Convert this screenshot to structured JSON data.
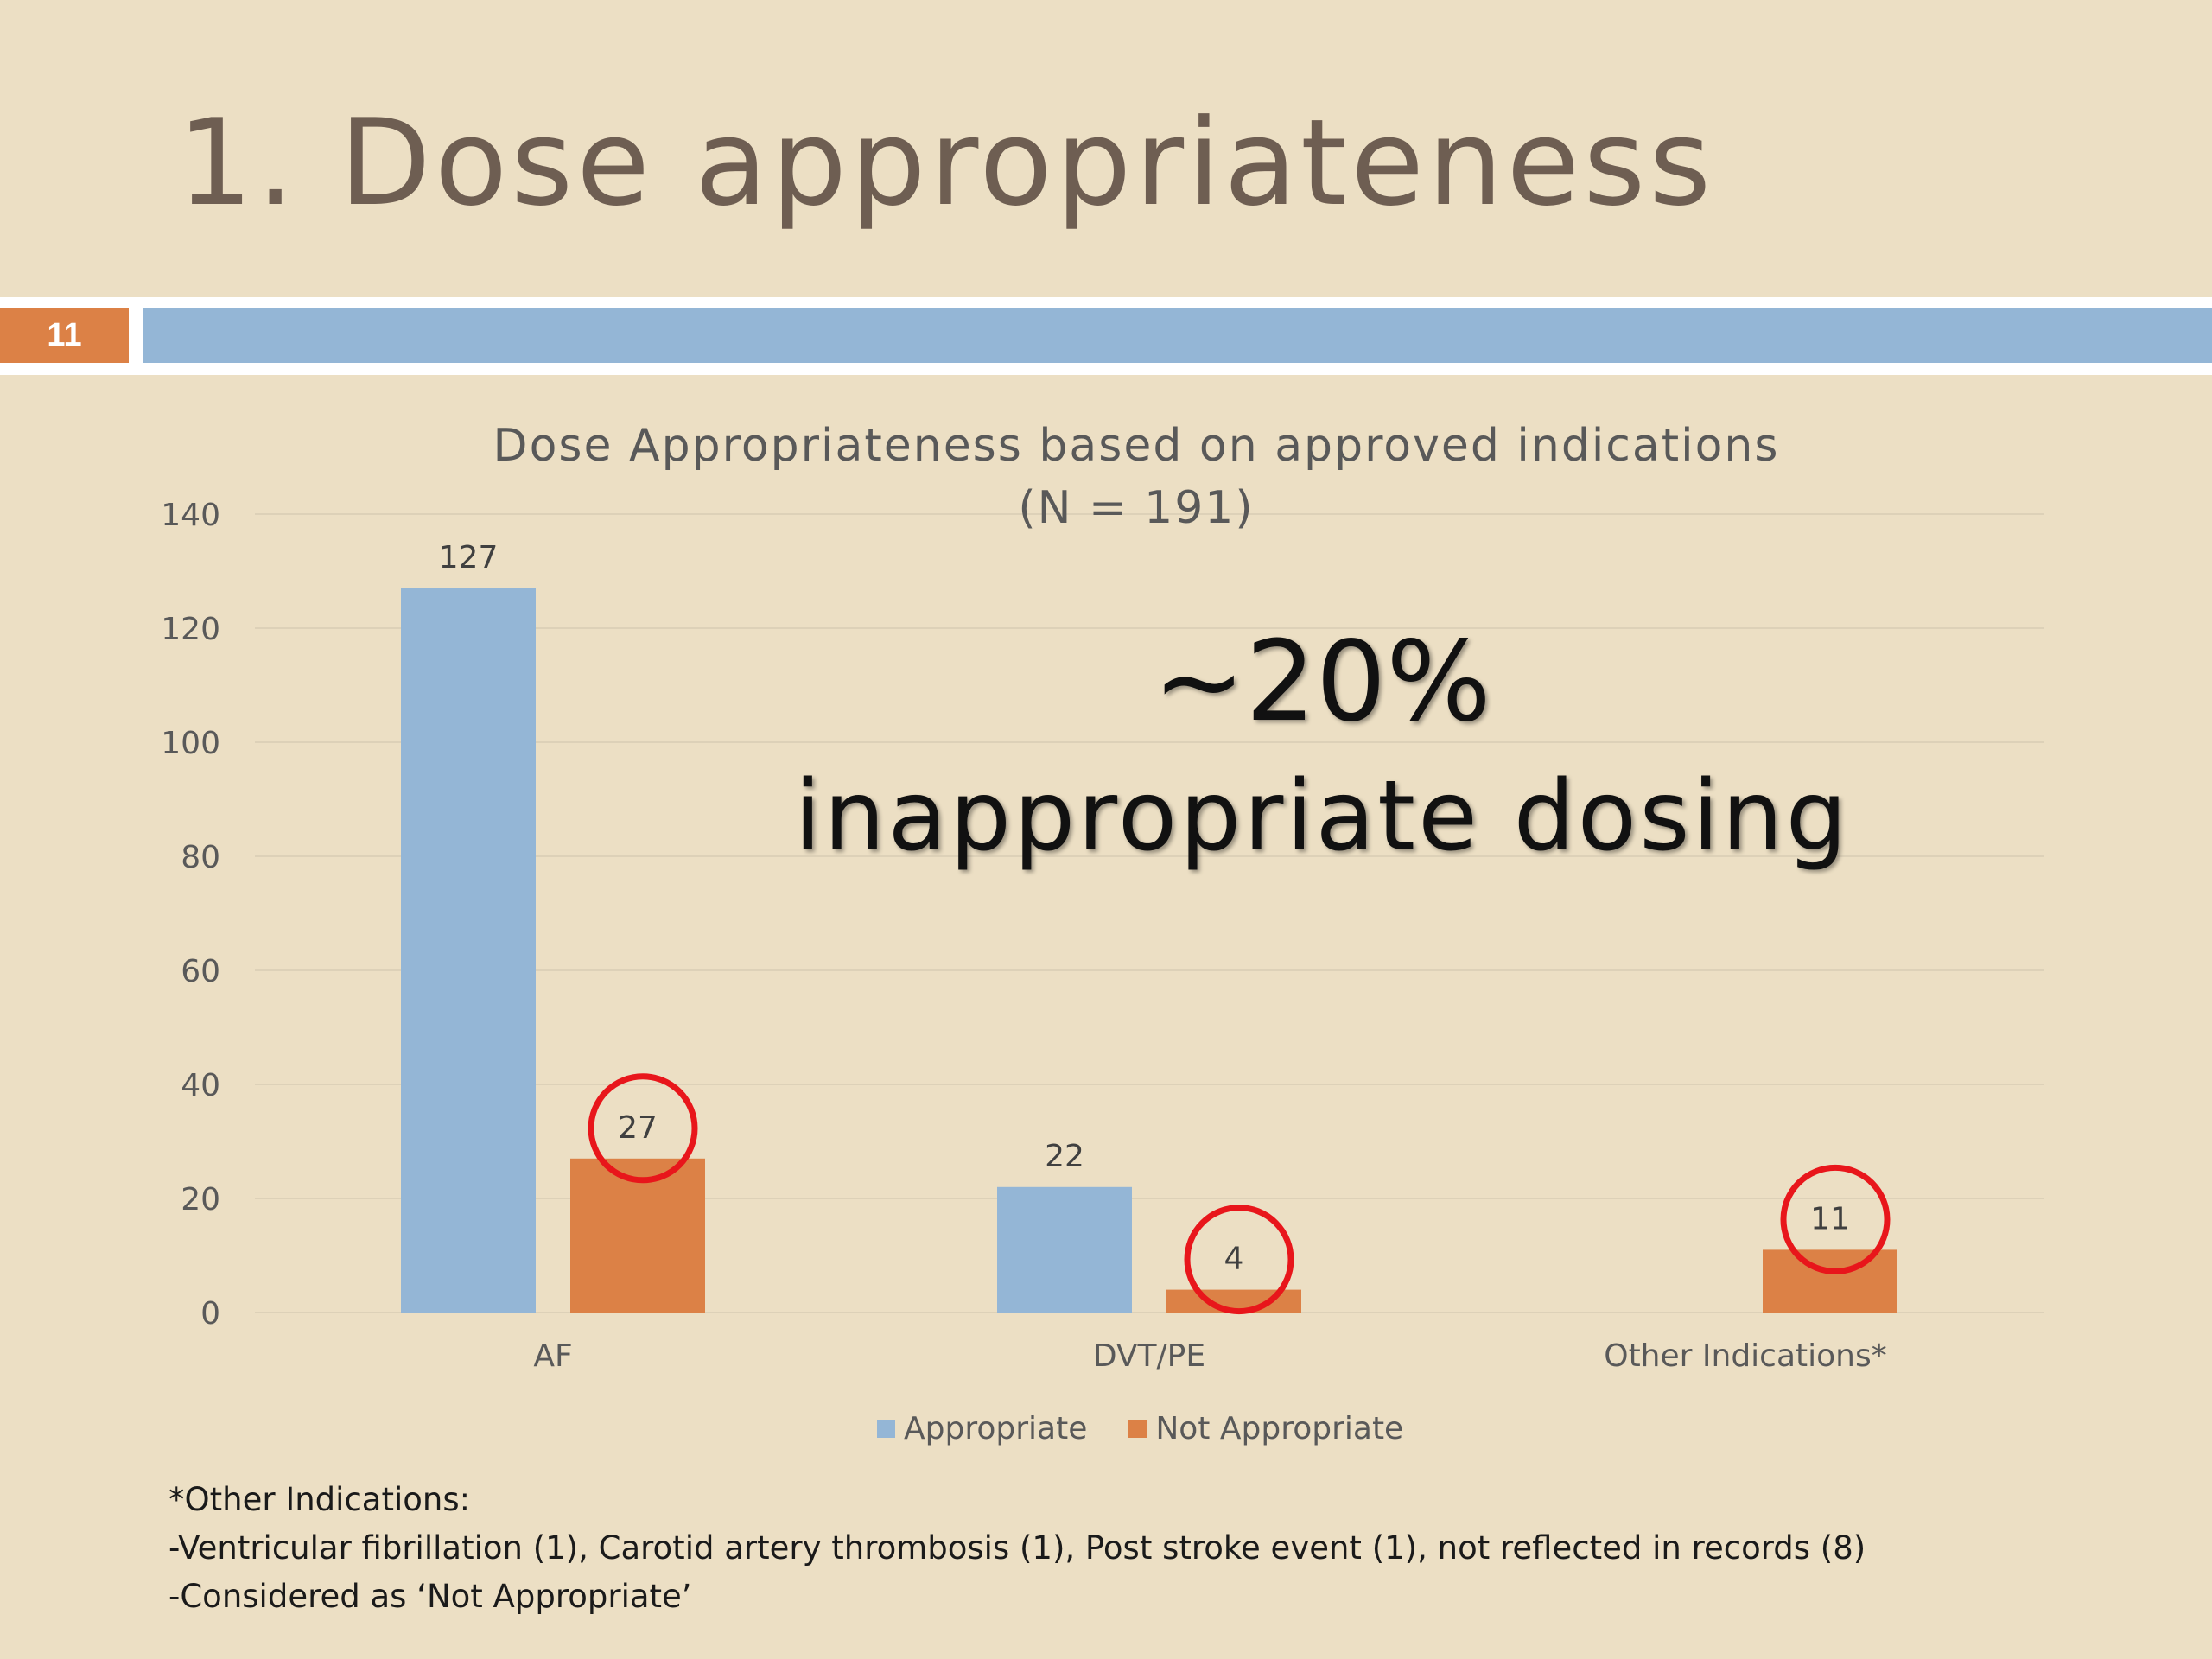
{
  "slide": {
    "title": "1. Dose appropriateness",
    "number": "11",
    "colors": {
      "background": "#ecdfc4",
      "accent_orange": "#dc8146",
      "accent_blue": "#94b6d6",
      "title_text": "#6e5e52"
    }
  },
  "chart_data": {
    "type": "bar",
    "title_lines": [
      "Dose Appropriateness based on approved indications",
      "(N = 191)"
    ],
    "categories": [
      "AF",
      "DVT/PE",
      "Other Indications*"
    ],
    "series": [
      {
        "name": "Appropriate",
        "color": "#94b6d6",
        "values": [
          127,
          22,
          null
        ]
      },
      {
        "name": "Not Appropriate",
        "color": "#dc8146",
        "values": [
          27,
          4,
          11
        ]
      }
    ],
    "ylim": [
      0,
      140
    ],
    "yticks": [
      0,
      20,
      40,
      60,
      80,
      100,
      120,
      140
    ],
    "data_labels": true,
    "grid": true,
    "legend_position": "bottom",
    "highlighted": [
      {
        "series": "Not Appropriate",
        "category": "AF",
        "marker": "red-circle"
      },
      {
        "series": "Not Appropriate",
        "category": "DVT/PE",
        "marker": "red-circle"
      },
      {
        "series": "Not Appropriate",
        "category": "Other Indications*",
        "marker": "red-circle"
      }
    ],
    "highlight_color": "#e8161b"
  },
  "callout": {
    "percent": "~20%",
    "text": "inappropriate dosing"
  },
  "footnote": {
    "lines": [
      "*Other Indications:",
      "-Ventricular fibrillation (1), Carotid artery thrombosis (1), Post stroke event (1), not reflected in records (8)",
      "-Considered as ‘Not Appropriate’"
    ]
  }
}
